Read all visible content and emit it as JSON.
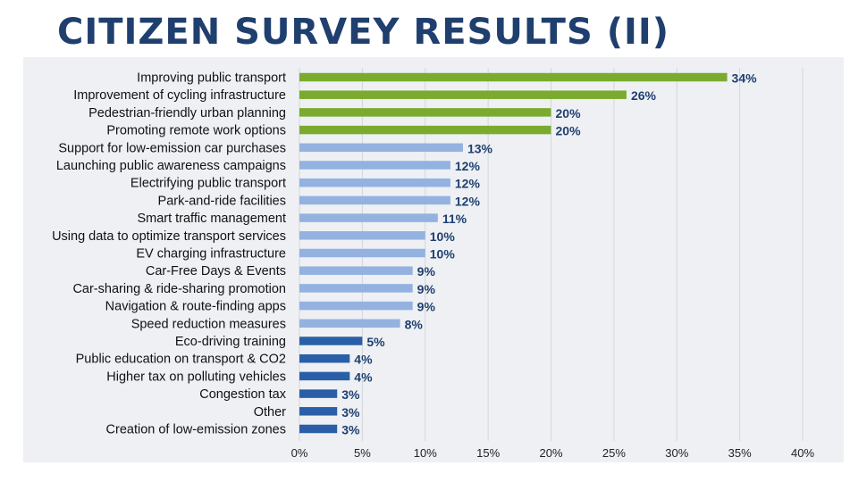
{
  "title": "CITIZEN SURVEY RESULTS (II)",
  "colors": {
    "green": "#7aab2e",
    "light_blue": "#93b2e0",
    "dark_blue": "#2a5fa8",
    "value_text": "#1f3f6e",
    "panel_bg": "#eef0f4"
  },
  "chart_data": {
    "type": "bar",
    "orientation": "horizontal",
    "title": "CITIZEN SURVEY RESULTS (II)",
    "xlabel": "",
    "ylabel": "",
    "xlim": [
      0,
      40
    ],
    "ticks": [
      "0%",
      "5%",
      "10%",
      "15%",
      "20%",
      "25%",
      "30%",
      "35%",
      "40%"
    ],
    "grid": true,
    "categories": [
      "Improving public transport",
      "Improvement of cycling infrastructure",
      "Pedestrian-friendly urban planning",
      "Promoting remote work options",
      "Support for low-emission car purchases",
      "Launching public awareness campaigns",
      "Electrifying public transport",
      "Park-and-ride facilities",
      "Smart traffic management",
      "Using data to optimize transport services",
      "EV charging infrastructure",
      "Car-Free Days & Events",
      "Car-sharing & ride-sharing promotion",
      "Navigation & route-finding apps",
      "Speed reduction measures",
      "Eco-driving training",
      "Public education on transport & CO2",
      "Higher tax on polluting vehicles",
      "Congestion tax",
      "Other",
      "Creation of low-emission zones"
    ],
    "values": [
      34,
      26,
      20,
      20,
      13,
      12,
      12,
      12,
      11,
      10,
      10,
      9,
      9,
      9,
      8,
      5,
      4,
      4,
      3,
      3,
      3
    ],
    "value_labels": [
      "34%",
      "26%",
      "20%",
      "20%",
      "13%",
      "12%",
      "12%",
      "12%",
      "11%",
      "10%",
      "10%",
      "9%",
      "9%",
      "9%",
      "8%",
      "5%",
      "4%",
      "4%",
      "3%",
      "3%",
      "3%"
    ],
    "groups": [
      "green",
      "green",
      "green",
      "green",
      "light_blue",
      "light_blue",
      "light_blue",
      "light_blue",
      "light_blue",
      "light_blue",
      "light_blue",
      "light_blue",
      "light_blue",
      "light_blue",
      "light_blue",
      "dark_blue",
      "dark_blue",
      "dark_blue",
      "dark_blue",
      "dark_blue",
      "dark_blue"
    ]
  }
}
